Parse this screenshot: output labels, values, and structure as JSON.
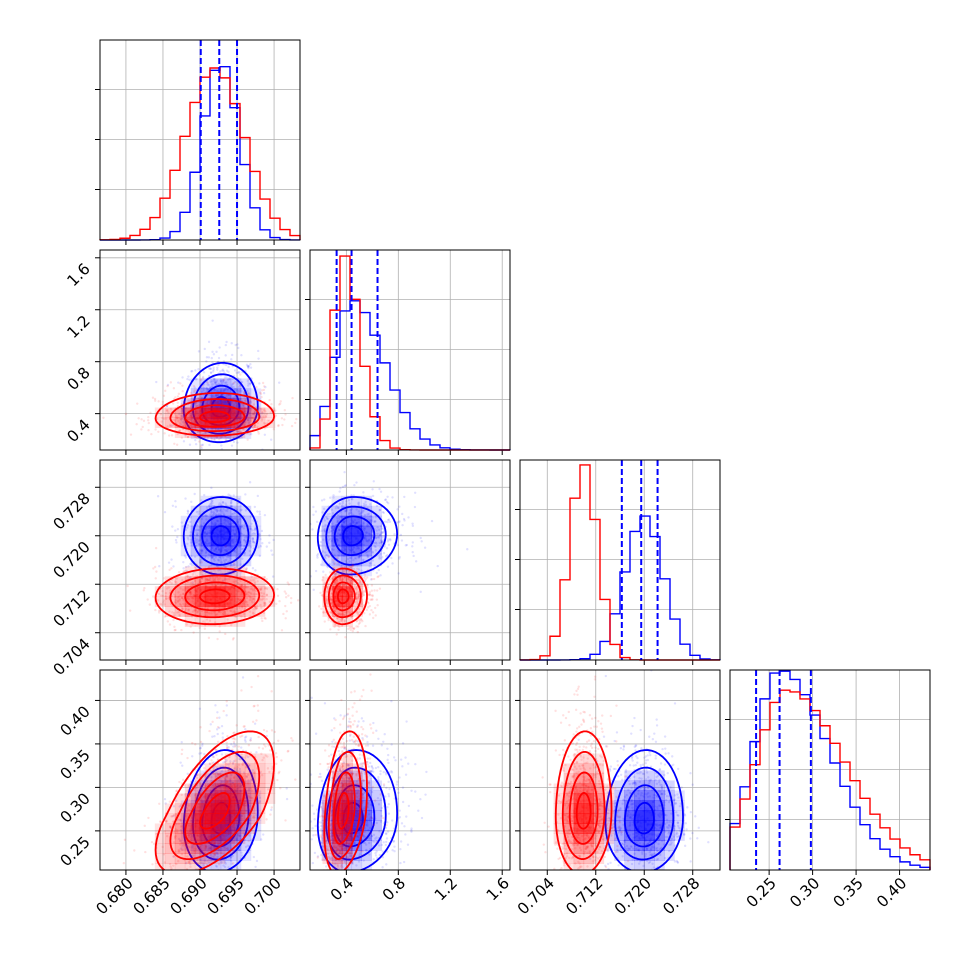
{
  "chart_data": {
    "type": "corner",
    "grid": true,
    "parameters": [
      {
        "ticks": [
          0.68,
          0.685,
          0.69,
          0.695,
          0.7
        ],
        "tick_labels": [
          "0.680",
          "0.685",
          "0.690",
          "0.695",
          "0.700"
        ],
        "range": [
          0.6765,
          0.7035
        ]
      },
      {
        "ticks": [
          0.4,
          0.8,
          1.2,
          1.6
        ],
        "tick_labels": [
          "0.4",
          "0.8",
          "1.2",
          "1.6"
        ],
        "range": [
          0.12,
          1.66
        ]
      },
      {
        "ticks": [
          0.704,
          0.712,
          0.72,
          0.728
        ],
        "tick_labels": [
          "0.704",
          "0.712",
          "0.720",
          "0.728"
        ],
        "range": [
          0.6995,
          0.7325
        ]
      },
      {
        "ticks": [
          0.25,
          0.3,
          0.35,
          0.4
        ],
        "tick_labels": [
          "0.25",
          "0.30",
          "0.35",
          "0.40"
        ],
        "range": [
          0.205,
          0.435
        ]
      }
    ],
    "series": [
      {
        "color": "#0000ff",
        "quantiles": [
          [
            0.6901,
            0.6926,
            0.695
          ],
          [
            0.325,
            0.44,
            0.64
          ],
          [
            0.7163,
            0.7195,
            0.7222
          ],
          [
            0.235,
            0.262,
            0.298
          ]
        ],
        "means": [
          0.6928,
          0.44,
          0.72,
          0.262
        ],
        "sds": [
          0.0025,
          0.13,
          0.0032,
          0.03
        ],
        "hist_peaks": [
          0.89,
          0.75,
          0.72,
          1.0
        ],
        "corr": [
          [
            1,
            0.05,
            0.02,
            0.12
          ],
          [
            0.05,
            1,
            0.05,
            0.1
          ],
          [
            0.02,
            0.05,
            1,
            0.05
          ],
          [
            0.12,
            0.1,
            0.05,
            1
          ]
        ]
      },
      {
        "color": "#ff0000",
        "means": [
          0.692,
          0.37,
          0.71,
          0.27
        ],
        "sds": [
          0.004,
          0.07,
          0.0023,
          0.035
        ],
        "hist_peaks": [
          0.86,
          0.98,
          0.98,
          0.9
        ],
        "corr": [
          [
            1,
            0.05,
            0.05,
            0.6
          ],
          [
            0.05,
            1,
            0.02,
            0.3
          ],
          [
            0.05,
            0.02,
            1,
            0.05
          ],
          [
            0.6,
            0.3,
            0.05,
            1
          ]
        ]
      }
    ]
  }
}
